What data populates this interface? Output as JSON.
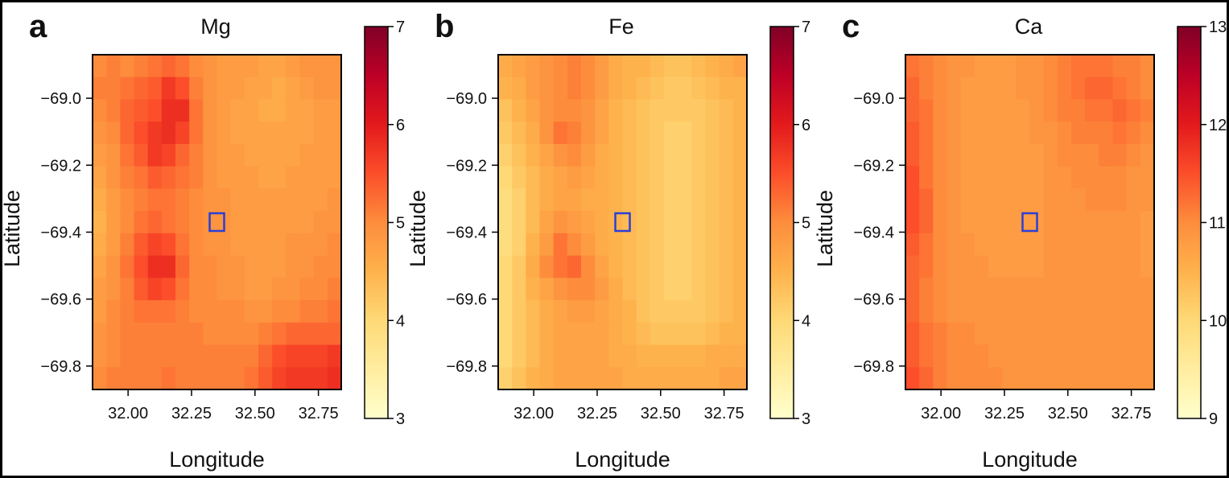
{
  "chart_data": [
    {
      "type": "heatmap",
      "panel_label": "a",
      "title": "Mg",
      "xlabel": "Longitude",
      "ylabel": "Latitude",
      "xlim": [
        31.86,
        32.84
      ],
      "ylim": [
        -69.87,
        -68.87
      ],
      "xticks": [
        "32.00",
        "32.25",
        "32.50",
        "32.75"
      ],
      "yticks": [
        "-69.0",
        "-69.2",
        "-69.4",
        "-69.6",
        "-69.8"
      ],
      "colorbar": {
        "min": 3,
        "max": 7,
        "ticks": [
          "3",
          "4",
          "5",
          "6",
          "7"
        ]
      },
      "marker": {
        "lon": 32.35,
        "lat": -69.37,
        "color": "#2a3fd6"
      },
      "description_values": "values mostly 4.8-5.6, higher (~5.8-6.0) in a band near lon 32.15-32.3",
      "grid": [
        [
          5.0,
          5.1,
          5.0,
          5.1,
          5.2,
          5.3,
          5.2,
          5.0,
          4.9,
          4.8,
          4.8,
          4.8,
          4.7,
          4.7,
          4.8,
          4.9,
          4.9,
          4.9
        ],
        [
          5.1,
          5.1,
          5.2,
          5.3,
          5.4,
          5.7,
          5.5,
          5.1,
          4.9,
          4.8,
          4.8,
          4.7,
          4.7,
          4.6,
          4.7,
          4.8,
          4.9,
          4.9
        ],
        [
          5.0,
          5.1,
          5.3,
          5.4,
          5.5,
          5.8,
          5.8,
          5.2,
          4.9,
          4.8,
          4.7,
          4.7,
          4.6,
          4.6,
          4.7,
          4.7,
          4.8,
          4.8
        ],
        [
          4.9,
          5.0,
          5.3,
          5.5,
          5.7,
          5.8,
          5.6,
          5.2,
          4.9,
          4.8,
          4.7,
          4.7,
          4.7,
          4.7,
          4.7,
          4.7,
          4.8,
          4.8
        ],
        [
          4.8,
          4.9,
          5.2,
          5.4,
          5.7,
          5.6,
          5.3,
          5.1,
          4.9,
          4.8,
          4.8,
          4.7,
          4.7,
          4.7,
          4.7,
          4.8,
          4.8,
          4.8
        ],
        [
          4.7,
          4.9,
          5.1,
          5.2,
          5.4,
          5.3,
          5.2,
          5.1,
          4.9,
          4.8,
          4.8,
          4.8,
          4.7,
          4.7,
          4.8,
          4.8,
          4.8,
          4.8
        ],
        [
          4.6,
          4.8,
          5.0,
          5.1,
          5.2,
          5.2,
          5.1,
          5.0,
          4.9,
          4.9,
          4.8,
          4.8,
          4.8,
          4.8,
          4.8,
          4.8,
          4.8,
          4.9
        ],
        [
          4.5,
          4.8,
          5.0,
          5.2,
          5.3,
          5.2,
          5.1,
          5.0,
          4.9,
          4.9,
          4.8,
          4.8,
          4.8,
          4.8,
          4.8,
          4.8,
          4.9,
          4.9
        ],
        [
          4.6,
          4.8,
          5.1,
          5.4,
          5.6,
          5.5,
          5.2,
          5.0,
          4.9,
          4.9,
          4.8,
          4.8,
          4.8,
          4.8,
          4.9,
          4.9,
          4.9,
          5.0
        ],
        [
          4.7,
          4.9,
          5.2,
          5.5,
          5.8,
          5.8,
          5.3,
          5.0,
          5.0,
          4.9,
          4.9,
          4.8,
          4.8,
          4.8,
          4.9,
          4.9,
          5.0,
          5.0
        ],
        [
          4.8,
          4.9,
          5.1,
          5.4,
          5.6,
          5.5,
          5.2,
          5.0,
          5.0,
          4.9,
          4.9,
          4.8,
          4.8,
          4.9,
          4.9,
          5.0,
          5.0,
          5.1
        ],
        [
          4.8,
          5.0,
          5.1,
          5.2,
          5.2,
          5.2,
          5.1,
          5.0,
          5.0,
          5.0,
          5.0,
          4.9,
          4.9,
          5.0,
          5.0,
          5.1,
          5.1,
          5.2
        ],
        [
          4.9,
          5.0,
          5.1,
          5.1,
          5.1,
          5.1,
          5.1,
          5.1,
          5.0,
          5.0,
          5.0,
          5.0,
          5.1,
          5.2,
          5.3,
          5.3,
          5.3,
          5.3
        ],
        [
          4.9,
          5.0,
          5.1,
          5.1,
          5.1,
          5.1,
          5.1,
          5.1,
          5.1,
          5.1,
          5.1,
          5.1,
          5.3,
          5.5,
          5.6,
          5.6,
          5.6,
          5.7
        ],
        [
          5.0,
          5.1,
          5.1,
          5.1,
          5.1,
          5.2,
          5.1,
          5.1,
          5.1,
          5.1,
          5.1,
          5.2,
          5.4,
          5.6,
          5.7,
          5.7,
          5.7,
          5.8
        ]
      ]
    },
    {
      "type": "heatmap",
      "panel_label": "b",
      "title": "Fe",
      "xlabel": "Longitude",
      "ylabel": "Latitude",
      "xlim": [
        31.86,
        32.84
      ],
      "ylim": [
        -69.87,
        -68.87
      ],
      "xticks": [
        "32.00",
        "32.25",
        "32.50",
        "32.75"
      ],
      "yticks": [
        "-69.0",
        "-69.2",
        "-69.4",
        "-69.6",
        "-69.8"
      ],
      "colorbar": {
        "min": 3,
        "max": 7,
        "ticks": [
          "3",
          "4",
          "5",
          "6",
          "7"
        ]
      },
      "marker": {
        "lon": 32.35,
        "lat": -69.37,
        "color": "#2a3fd6"
      },
      "description_values": "values mostly 4.2-5.0, lower (~4.0) along west edge and central east band, higher (~5.3) in patches near lon 32.1-32.3",
      "grid": [
        [
          4.6,
          4.7,
          4.8,
          4.9,
          5.0,
          5.1,
          5.0,
          4.8,
          4.6,
          4.5,
          4.5,
          4.4,
          4.3,
          4.3,
          4.4,
          4.5,
          4.6,
          4.7
        ],
        [
          4.5,
          4.6,
          4.8,
          4.9,
          5.0,
          5.1,
          5.0,
          4.8,
          4.6,
          4.5,
          4.4,
          4.3,
          4.2,
          4.2,
          4.3,
          4.4,
          4.5,
          4.5
        ],
        [
          4.3,
          4.5,
          4.7,
          4.9,
          5.0,
          5.0,
          4.9,
          4.7,
          4.5,
          4.4,
          4.3,
          4.2,
          4.2,
          4.2,
          4.2,
          4.3,
          4.4,
          4.5
        ],
        [
          4.2,
          4.4,
          4.6,
          4.9,
          5.2,
          5.1,
          4.9,
          4.7,
          4.5,
          4.4,
          4.3,
          4.2,
          4.1,
          4.1,
          4.2,
          4.3,
          4.4,
          4.5
        ],
        [
          4.1,
          4.3,
          4.5,
          4.7,
          4.9,
          5.0,
          4.8,
          4.6,
          4.5,
          4.4,
          4.3,
          4.2,
          4.1,
          4.1,
          4.2,
          4.3,
          4.4,
          4.5
        ],
        [
          4.0,
          4.2,
          4.4,
          4.6,
          4.7,
          4.8,
          4.7,
          4.6,
          4.5,
          4.4,
          4.3,
          4.2,
          4.1,
          4.1,
          4.2,
          4.3,
          4.4,
          4.5
        ],
        [
          3.9,
          4.1,
          4.4,
          4.6,
          4.7,
          4.7,
          4.6,
          4.6,
          4.5,
          4.4,
          4.3,
          4.2,
          4.1,
          4.1,
          4.2,
          4.3,
          4.4,
          4.5
        ],
        [
          3.9,
          4.1,
          4.4,
          4.7,
          4.9,
          4.8,
          4.7,
          4.6,
          4.5,
          4.4,
          4.3,
          4.2,
          4.1,
          4.1,
          4.2,
          4.3,
          4.4,
          4.5
        ],
        [
          3.9,
          4.1,
          4.5,
          4.8,
          5.2,
          5.0,
          4.8,
          4.6,
          4.5,
          4.4,
          4.3,
          4.2,
          4.1,
          4.1,
          4.2,
          4.3,
          4.4,
          4.5
        ],
        [
          4.0,
          4.2,
          4.6,
          5.0,
          5.2,
          5.3,
          5.0,
          4.7,
          4.5,
          4.4,
          4.3,
          4.2,
          4.1,
          4.1,
          4.2,
          4.3,
          4.4,
          4.5
        ],
        [
          4.0,
          4.2,
          4.5,
          4.7,
          4.9,
          5.0,
          5.0,
          4.8,
          4.6,
          4.4,
          4.3,
          4.2,
          4.1,
          4.1,
          4.2,
          4.3,
          4.4,
          4.5
        ],
        [
          4.0,
          4.2,
          4.4,
          4.6,
          4.7,
          4.8,
          4.8,
          4.7,
          4.6,
          4.5,
          4.3,
          4.2,
          4.2,
          4.2,
          4.2,
          4.3,
          4.4,
          4.5
        ],
        [
          4.0,
          4.2,
          4.4,
          4.6,
          4.7,
          4.7,
          4.7,
          4.7,
          4.6,
          4.5,
          4.4,
          4.3,
          4.3,
          4.3,
          4.3,
          4.4,
          4.5,
          4.5
        ],
        [
          4.0,
          4.2,
          4.4,
          4.6,
          4.7,
          4.7,
          4.7,
          4.7,
          4.6,
          4.6,
          4.5,
          4.5,
          4.5,
          4.5,
          4.5,
          4.6,
          4.6,
          4.6
        ],
        [
          4.1,
          4.3,
          4.5,
          4.6,
          4.7,
          4.7,
          4.7,
          4.7,
          4.7,
          4.6,
          4.6,
          4.6,
          4.6,
          4.6,
          4.6,
          4.6,
          4.7,
          4.7
        ]
      ]
    },
    {
      "type": "heatmap",
      "panel_label": "c",
      "title": "Ca",
      "xlabel": "Longitude",
      "ylabel": "Latitude",
      "xlim": [
        31.86,
        32.84
      ],
      "ylim": [
        -69.87,
        -68.87
      ],
      "xticks": [
        "32.00",
        "32.25",
        "32.50",
        "32.75"
      ],
      "yticks": [
        "-69.0",
        "-69.2",
        "-69.4",
        "-69.6",
        "-69.8"
      ],
      "colorbar": {
        "min": 9,
        "max": 13,
        "ticks": [
          "9",
          "10",
          "11",
          "12",
          "13"
        ]
      },
      "marker": {
        "lon": 32.35,
        "lat": -69.37,
        "color": "#2a3fd6"
      },
      "description_values": "values mostly 10.7-11.2, higher (~11.5) along west edge",
      "grid": [
        [
          11.2,
          11.1,
          11.0,
          10.9,
          10.9,
          10.8,
          10.8,
          10.8,
          10.9,
          10.9,
          11.0,
          11.1,
          11.2,
          11.2,
          11.2,
          11.1,
          11.1,
          11.0
        ],
        [
          11.3,
          11.1,
          11.0,
          10.9,
          10.8,
          10.8,
          10.8,
          10.8,
          10.9,
          10.9,
          11.0,
          11.1,
          11.2,
          11.3,
          11.3,
          11.2,
          11.1,
          11.0
        ],
        [
          11.3,
          11.2,
          11.0,
          10.9,
          10.8,
          10.8,
          10.8,
          10.8,
          10.8,
          10.9,
          11.0,
          11.1,
          11.1,
          11.2,
          11.2,
          11.3,
          11.2,
          11.1
        ],
        [
          11.4,
          11.2,
          11.0,
          10.9,
          10.8,
          10.8,
          10.8,
          10.8,
          10.8,
          10.9,
          10.9,
          11.0,
          11.1,
          11.1,
          11.1,
          11.2,
          11.1,
          11.0
        ],
        [
          11.4,
          11.2,
          11.0,
          10.9,
          10.8,
          10.8,
          10.8,
          10.8,
          10.8,
          10.8,
          10.9,
          11.0,
          11.0,
          11.0,
          11.1,
          11.1,
          11.0,
          10.9
        ],
        [
          11.5,
          11.2,
          11.0,
          10.9,
          10.8,
          10.8,
          10.8,
          10.8,
          10.8,
          10.8,
          10.9,
          10.9,
          11.0,
          11.0,
          11.0,
          11.0,
          10.9,
          10.9
        ],
        [
          11.5,
          11.3,
          11.0,
          10.9,
          10.8,
          10.8,
          10.8,
          10.8,
          10.8,
          10.8,
          10.9,
          10.9,
          10.9,
          11.0,
          11.0,
          11.0,
          10.9,
          10.9
        ],
        [
          11.5,
          11.3,
          11.0,
          10.9,
          10.8,
          10.8,
          10.8,
          10.8,
          10.8,
          10.8,
          10.9,
          10.9,
          10.9,
          10.9,
          10.9,
          10.9,
          10.9,
          10.8
        ],
        [
          11.4,
          11.2,
          11.0,
          10.9,
          10.9,
          10.8,
          10.8,
          10.8,
          10.8,
          10.8,
          10.9,
          10.9,
          10.9,
          10.9,
          10.9,
          10.9,
          10.9,
          10.8
        ],
        [
          11.3,
          11.2,
          11.0,
          10.9,
          10.9,
          10.9,
          10.8,
          10.8,
          10.8,
          10.8,
          10.9,
          10.9,
          10.9,
          10.9,
          10.9,
          10.9,
          10.9,
          10.8
        ],
        [
          11.3,
          11.1,
          11.0,
          10.9,
          10.9,
          10.9,
          10.9,
          10.9,
          10.9,
          10.9,
          10.9,
          10.9,
          10.9,
          10.9,
          10.9,
          10.9,
          10.9,
          10.9
        ],
        [
          11.3,
          11.1,
          11.0,
          10.9,
          10.9,
          10.9,
          10.9,
          10.9,
          10.9,
          10.9,
          10.9,
          10.9,
          10.9,
          10.9,
          10.9,
          10.9,
          10.9,
          10.9
        ],
        [
          11.4,
          11.2,
          11.1,
          11.0,
          11.0,
          10.9,
          10.9,
          10.9,
          10.9,
          10.9,
          10.9,
          10.9,
          10.9,
          10.9,
          10.9,
          10.9,
          10.9,
          10.9
        ],
        [
          11.4,
          11.2,
          11.1,
          11.0,
          11.0,
          11.0,
          10.9,
          10.9,
          10.9,
          10.9,
          10.9,
          10.9,
          10.9,
          10.9,
          10.9,
          10.9,
          10.9,
          10.9
        ],
        [
          11.5,
          11.3,
          11.1,
          11.0,
          11.0,
          11.0,
          11.0,
          10.9,
          10.9,
          10.9,
          10.9,
          10.9,
          10.9,
          10.9,
          10.9,
          10.9,
          10.9,
          10.9
        ]
      ]
    }
  ],
  "colormap": [
    "#ffffcc",
    "#ffeda0",
    "#fed976",
    "#feb24c",
    "#fd8d3c",
    "#fc4e2a",
    "#e31a1c",
    "#bd0026",
    "#800026"
  ]
}
